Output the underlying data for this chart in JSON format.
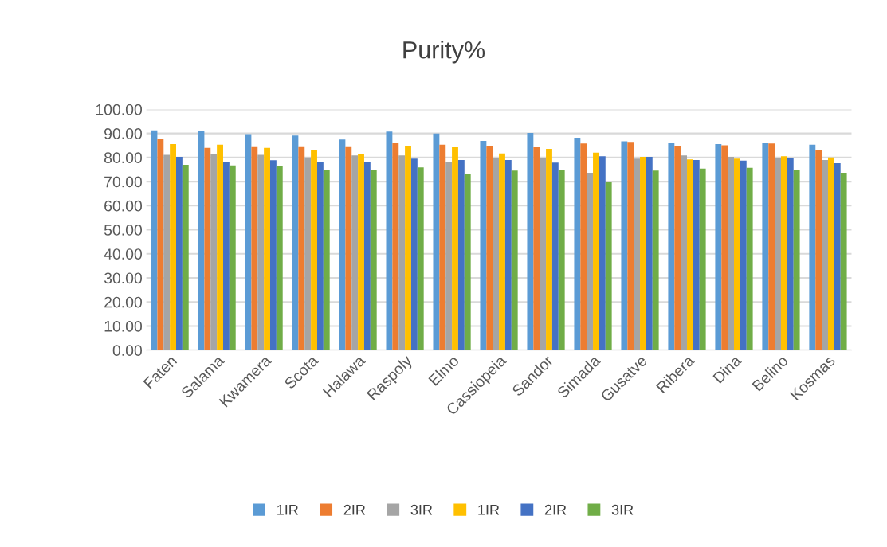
{
  "chart_data": {
    "type": "bar",
    "title": "Purity%",
    "categories": [
      "Faten",
      "Salama",
      "Kwamera",
      "Scota",
      "Halawa",
      "Raspoly",
      "Elmo",
      "Cassiopeia",
      "Sandor",
      "Simada",
      "Gusatve",
      "Ribera",
      "Dina",
      "Belino",
      "Kosmas"
    ],
    "series": [
      {
        "name": "1IR",
        "color": "#5b9bd5",
        "values": [
          91.3,
          91.0,
          89.7,
          89.1,
          87.5,
          90.8,
          90.0,
          86.9,
          90.2,
          88.2,
          86.7,
          86.2,
          85.6,
          86.0,
          85.3
        ]
      },
      {
        "name": "2IR",
        "color": "#ed7d31",
        "values": [
          87.7,
          84.0,
          84.7,
          84.7,
          84.7,
          86.2,
          85.3,
          84.9,
          84.4,
          85.8,
          86.5,
          84.9,
          85.1,
          85.8,
          83.1
        ]
      },
      {
        "name": "3IR",
        "color": "#a5a5a5",
        "values": [
          81.1,
          81.6,
          81.1,
          80.0,
          80.9,
          80.9,
          78.3,
          79.8,
          79.8,
          73.7,
          79.5,
          80.9,
          80.3,
          79.8,
          79.0
        ]
      },
      {
        "name": "1IR",
        "color": "#ffc000",
        "values": [
          85.6,
          85.3,
          84.0,
          83.1,
          81.6,
          84.9,
          84.4,
          81.7,
          83.6,
          82.0,
          80.3,
          79.2,
          79.5,
          80.5,
          80.0
        ]
      },
      {
        "name": "2IR",
        "color": "#4472c4",
        "values": [
          80.3,
          78.1,
          78.9,
          78.3,
          78.3,
          79.5,
          79.0,
          79.0,
          77.9,
          80.5,
          80.3,
          79.0,
          78.7,
          79.8,
          77.6
        ]
      },
      {
        "name": "3IR",
        "color": "#70ad47",
        "values": [
          77.0,
          76.7,
          76.5,
          75.0,
          75.0,
          75.9,
          73.2,
          74.6,
          74.8,
          69.9,
          74.6,
          75.4,
          75.7,
          75.0,
          73.7
        ]
      }
    ],
    "ylim": [
      0,
      100
    ],
    "yticks": [
      {
        "value": 0,
        "label": "0.00"
      },
      {
        "value": 10,
        "label": "10.00"
      },
      {
        "value": 20,
        "label": "20.00"
      },
      {
        "value": 30,
        "label": "30.00"
      },
      {
        "value": 40,
        "label": "40.00"
      },
      {
        "value": 50,
        "label": "50.00"
      },
      {
        "value": 60,
        "label": "60.00"
      },
      {
        "value": 70,
        "label": "70.00"
      },
      {
        "value": 80,
        "label": "80.00"
      },
      {
        "value": 90,
        "label": "90.00"
      },
      {
        "value": 100,
        "label": "100.00"
      }
    ],
    "grid": "y",
    "legend": "bottom"
  }
}
